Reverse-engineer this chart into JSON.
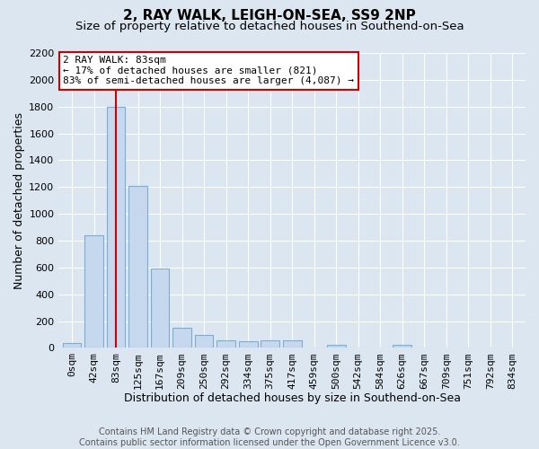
{
  "title1": "2, RAY WALK, LEIGH-ON-SEA, SS9 2NP",
  "title2": "Size of property relative to detached houses in Southend-on-Sea",
  "xlabel": "Distribution of detached houses by size in Southend-on-Sea",
  "ylabel": "Number of detached properties",
  "categories": [
    "0sqm",
    "42sqm",
    "83sqm",
    "125sqm",
    "167sqm",
    "209sqm",
    "250sqm",
    "292sqm",
    "334sqm",
    "375sqm",
    "417sqm",
    "459sqm",
    "500sqm",
    "542sqm",
    "584sqm",
    "626sqm",
    "667sqm",
    "709sqm",
    "751sqm",
    "792sqm",
    "834sqm"
  ],
  "values": [
    40,
    840,
    1800,
    1210,
    590,
    150,
    100,
    55,
    50,
    60,
    60,
    0,
    20,
    0,
    0,
    20,
    0,
    0,
    0,
    0,
    0
  ],
  "bar_color": "#c5d8ee",
  "bar_edge_color": "#7aaed4",
  "vline_x_index": 2,
  "vline_color": "#cc0000",
  "annotation_text": "2 RAY WALK: 83sqm\n← 17% of detached houses are smaller (821)\n83% of semi-detached houses are larger (4,087) →",
  "annotation_box_color": "#ffffff",
  "annotation_border_color": "#cc0000",
  "ylim": [
    0,
    2200
  ],
  "yticks": [
    0,
    200,
    400,
    600,
    800,
    1000,
    1200,
    1400,
    1600,
    1800,
    2000,
    2200
  ],
  "bg_color": "#dce6f1",
  "plot_bg_color": "#dce6f1",
  "grid_color": "#ffffff",
  "footer": "Contains HM Land Registry data © Crown copyright and database right 2025.\nContains public sector information licensed under the Open Government Licence v3.0.",
  "title1_fontsize": 11,
  "title2_fontsize": 9.5,
  "xlabel_fontsize": 9,
  "ylabel_fontsize": 9,
  "tick_fontsize": 8,
  "footer_fontsize": 7,
  "annotation_fontsize": 8
}
